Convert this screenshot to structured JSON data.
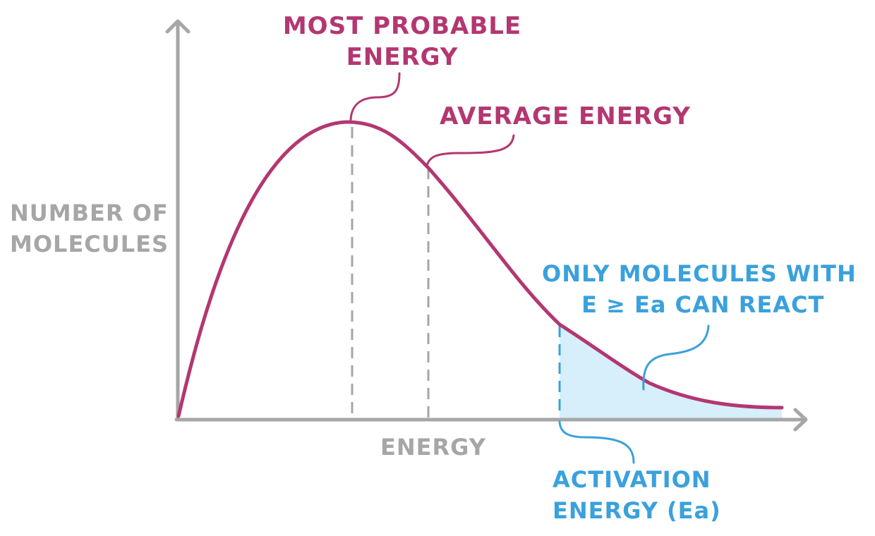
{
  "colors": {
    "curve": "#b33770",
    "axis": "#a6a6a6",
    "highlight": "#3aa1dc",
    "shade": "#d6effb"
  },
  "labels": {
    "most_probable": [
      "MOST PROBABLE",
      "ENERGY"
    ],
    "average": "AVERAGE ENERGY",
    "y_axis": [
      "NUMBER OF",
      "MOLECULES"
    ],
    "x_axis": "ENERGY",
    "only_molecules": [
      "ONLY MOLECULES WITH",
      "E ≥ Ea CAN REACT"
    ],
    "activation": [
      "ACTIVATION",
      "ENERGY (Ea)"
    ]
  }
}
